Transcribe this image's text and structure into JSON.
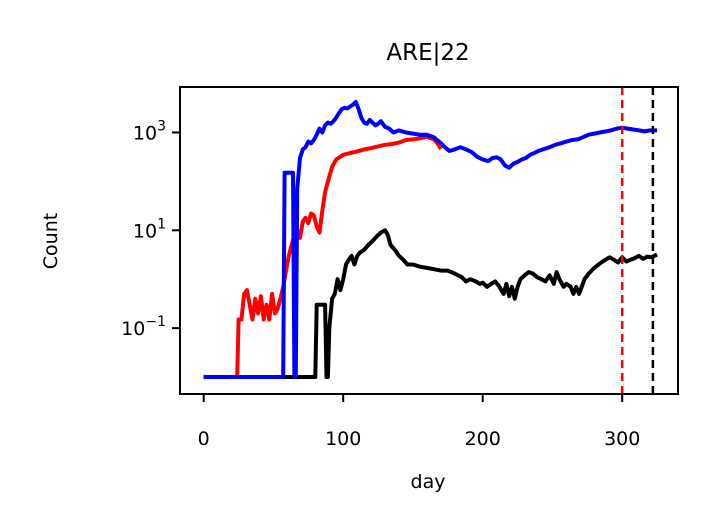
{
  "chart_data": {
    "type": "line",
    "title": "ARE|22",
    "xlabel": "day",
    "ylabel": "Count",
    "x_ticks": [
      "0",
      "100",
      "200",
      "300"
    ],
    "x_tick_values": [
      0,
      100,
      200,
      300
    ],
    "y_ticks": [
      {
        "base": "10",
        "exp": "−1",
        "value": 0.1
      },
      {
        "base": "10",
        "exp": "1",
        "value": 10
      },
      {
        "base": "10",
        "exp": "3",
        "value": 1000
      }
    ],
    "xlim": [
      -17,
      340
    ],
    "ylim": [
      0.0045,
      8500
    ],
    "yscale": "log",
    "grid": false,
    "series": [
      {
        "color": "#ff0000",
        "points": [
          [
            0,
            0.01
          ],
          [
            24,
            0.01
          ],
          [
            25,
            0.15
          ],
          [
            27,
            0.15
          ],
          [
            29,
            0.5
          ],
          [
            31,
            0.6
          ],
          [
            33,
            0.3
          ],
          [
            35,
            0.15
          ],
          [
            37,
            0.4
          ],
          [
            39,
            0.2
          ],
          [
            41,
            0.45
          ],
          [
            43,
            0.15
          ],
          [
            45,
            0.3
          ],
          [
            47,
            0.15
          ],
          [
            49,
            0.5
          ],
          [
            51,
            0.2
          ],
          [
            53,
            0.25
          ],
          [
            55,
            0.4
          ],
          [
            57,
            0.7
          ],
          [
            59,
            1.5
          ],
          [
            61,
            3
          ],
          [
            63,
            5
          ],
          [
            65,
            8
          ],
          [
            67,
            10
          ],
          [
            69,
            7
          ],
          [
            71,
            15
          ],
          [
            73,
            18
          ],
          [
            75,
            14
          ],
          [
            77,
            22
          ],
          [
            79,
            20
          ],
          [
            81,
            12
          ],
          [
            83,
            9
          ],
          [
            85,
            25
          ],
          [
            87,
            60
          ],
          [
            89,
            100
          ],
          [
            92,
            200
          ],
          [
            95,
            280
          ],
          [
            100,
            350
          ],
          [
            105,
            380
          ],
          [
            110,
            410
          ],
          [
            115,
            450
          ],
          [
            120,
            480
          ],
          [
            125,
            520
          ],
          [
            130,
            560
          ],
          [
            135,
            580
          ],
          [
            140,
            620
          ],
          [
            145,
            700
          ],
          [
            150,
            720
          ],
          [
            155,
            760
          ],
          [
            160,
            820
          ],
          [
            165,
            720
          ],
          [
            168,
            580
          ],
          [
            170,
            460
          ]
        ]
      },
      {
        "color": "#000000",
        "points": [
          [
            0,
            0.01
          ],
          [
            80,
            0.01
          ],
          [
            81,
            0.3
          ],
          [
            83,
            0.3
          ],
          [
            85,
            0.3
          ],
          [
            87,
            0.3
          ],
          [
            88,
            0.01
          ],
          [
            89,
            0.01
          ],
          [
            90,
            0.1
          ],
          [
            92,
            0.4
          ],
          [
            94,
            0.5
          ],
          [
            96,
            1
          ],
          [
            98,
            0.6
          ],
          [
            100,
            1
          ],
          [
            102,
            2
          ],
          [
            104,
            2.5
          ],
          [
            106,
            3
          ],
          [
            108,
            2
          ],
          [
            110,
            3
          ],
          [
            112,
            3.5
          ],
          [
            115,
            4
          ],
          [
            118,
            5
          ],
          [
            121,
            6
          ],
          [
            124,
            7.5
          ],
          [
            127,
            9
          ],
          [
            130,
            10
          ],
          [
            132,
            8
          ],
          [
            134,
            5
          ],
          [
            137,
            4
          ],
          [
            140,
            3
          ],
          [
            143,
            2.5
          ],
          [
            146,
            2
          ],
          [
            150,
            2
          ],
          [
            155,
            1.8
          ],
          [
            160,
            1.7
          ],
          [
            165,
            1.6
          ],
          [
            170,
            1.5
          ],
          [
            175,
            1.5
          ],
          [
            180,
            1.3
          ],
          [
            185,
            1.1
          ],
          [
            188,
            0.9
          ],
          [
            191,
            1
          ],
          [
            195,
            0.9
          ],
          [
            198,
            0.8
          ],
          [
            200,
            0.85
          ],
          [
            203,
            0.7
          ],
          [
            206,
            0.8
          ],
          [
            209,
            0.9
          ],
          [
            212,
            0.7
          ],
          [
            215,
            0.5
          ],
          [
            217,
            0.8
          ],
          [
            219,
            0.45
          ],
          [
            221,
            0.7
          ],
          [
            223,
            0.4
          ],
          [
            225,
            0.7
          ],
          [
            227,
            1
          ],
          [
            230,
            1.2
          ],
          [
            233,
            1.4
          ],
          [
            236,
            1.3
          ],
          [
            239,
            1.1
          ],
          [
            242,
            1
          ],
          [
            245,
            0.9
          ],
          [
            248,
            1.2
          ],
          [
            251,
            0.8
          ],
          [
            253,
            1.4
          ],
          [
            255,
            1
          ],
          [
            258,
            0.7
          ],
          [
            260,
            0.8
          ],
          [
            263,
            0.7
          ],
          [
            265,
            0.5
          ],
          [
            267,
            0.7
          ],
          [
            269,
            0.5
          ],
          [
            271,
            0.7
          ],
          [
            273,
            1
          ],
          [
            276,
            1.3
          ],
          [
            279,
            1.6
          ],
          [
            282,
            1.9
          ],
          [
            285,
            2.2
          ],
          [
            288,
            2.5
          ],
          [
            291,
            2.8
          ],
          [
            294,
            2.5
          ],
          [
            297,
            2.2
          ],
          [
            300,
            2.8
          ],
          [
            303,
            2.3
          ],
          [
            306,
            2.5
          ],
          [
            309,
            2.7
          ],
          [
            312,
            3
          ],
          [
            315,
            2.6
          ],
          [
            318,
            2.9
          ],
          [
            321,
            2.8
          ],
          [
            325,
            3.2
          ]
        ]
      },
      {
        "color": "#0000ff",
        "points": [
          [
            0,
            0.01
          ],
          [
            57,
            0.01
          ],
          [
            58,
            150
          ],
          [
            60,
            150
          ],
          [
            62,
            150
          ],
          [
            64,
            150
          ],
          [
            65,
            0.01
          ],
          [
            66,
            0.01
          ],
          [
            67,
            70
          ],
          [
            69,
            300
          ],
          [
            71,
            450
          ],
          [
            73,
            500
          ],
          [
            75,
            650
          ],
          [
            77,
            600
          ],
          [
            79,
            700
          ],
          [
            81,
            900
          ],
          [
            83,
            1200
          ],
          [
            85,
            1000
          ],
          [
            87,
            1400
          ],
          [
            89,
            1600
          ],
          [
            91,
            1500
          ],
          [
            93,
            1700
          ],
          [
            95,
            2000
          ],
          [
            97,
            2500
          ],
          [
            99,
            3000
          ],
          [
            101,
            3200
          ],
          [
            103,
            3100
          ],
          [
            105,
            3400
          ],
          [
            107,
            3700
          ],
          [
            109,
            4200
          ],
          [
            111,
            3000
          ],
          [
            113,
            2000
          ],
          [
            115,
            1600
          ],
          [
            117,
            1500
          ],
          [
            119,
            1800
          ],
          [
            121,
            1600
          ],
          [
            123,
            1400
          ],
          [
            125,
            1500
          ],
          [
            127,
            1700
          ],
          [
            130,
            1300
          ],
          [
            133,
            1200
          ],
          [
            136,
            1000
          ],
          [
            140,
            1100
          ],
          [
            145,
            1000
          ],
          [
            150,
            950
          ],
          [
            155,
            900
          ],
          [
            160,
            900
          ],
          [
            165,
            800
          ],
          [
            170,
            600
          ],
          [
            173,
            500
          ],
          [
            176,
            420
          ],
          [
            180,
            450
          ],
          [
            184,
            500
          ],
          [
            188,
            450
          ],
          [
            192,
            400
          ],
          [
            196,
            320
          ],
          [
            200,
            280
          ],
          [
            204,
            260
          ],
          [
            207,
            300
          ],
          [
            210,
            310
          ],
          [
            213,
            280
          ],
          [
            216,
            210
          ],
          [
            219,
            190
          ],
          [
            222,
            230
          ],
          [
            225,
            250
          ],
          [
            228,
            280
          ],
          [
            231,
            300
          ],
          [
            234,
            350
          ],
          [
            237,
            380
          ],
          [
            240,
            420
          ],
          [
            244,
            460
          ],
          [
            248,
            500
          ],
          [
            252,
            560
          ],
          [
            256,
            600
          ],
          [
            260,
            650
          ],
          [
            264,
            700
          ],
          [
            268,
            720
          ],
          [
            272,
            800
          ],
          [
            276,
            900
          ],
          [
            280,
            950
          ],
          [
            284,
            1000
          ],
          [
            288,
            1050
          ],
          [
            292,
            1100
          ],
          [
            296,
            1200
          ],
          [
            300,
            1250
          ],
          [
            304,
            1200
          ],
          [
            308,
            1150
          ],
          [
            312,
            1100
          ],
          [
            316,
            1050
          ],
          [
            320,
            1100
          ],
          [
            325,
            1100
          ]
        ]
      }
    ],
    "vlines": [
      {
        "x": 300,
        "color": "#ff0000",
        "style": "dashed"
      },
      {
        "x": 322,
        "color": "#000000",
        "style": "dashed"
      }
    ]
  }
}
